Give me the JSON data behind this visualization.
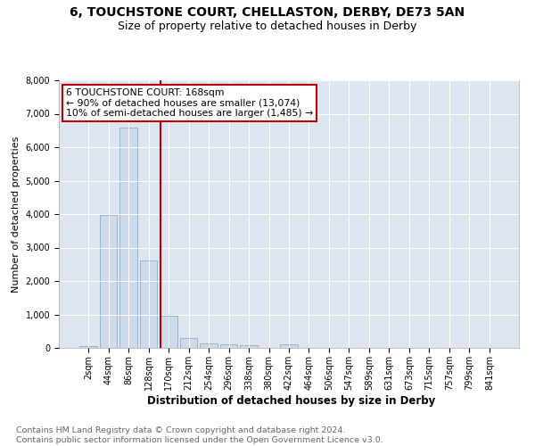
{
  "title": "6, TOUCHSTONE COURT, CHELLASTON, DERBY, DE73 5AN",
  "subtitle": "Size of property relative to detached houses in Derby",
  "xlabel": "Distribution of detached houses by size in Derby",
  "ylabel": "Number of detached properties",
  "footer_line1": "Contains HM Land Registry data © Crown copyright and database right 2024.",
  "footer_line2": "Contains public sector information licensed under the Open Government Licence v3.0.",
  "bar_labels": [
    "2sqm",
    "44sqm",
    "86sqm",
    "128sqm",
    "170sqm",
    "212sqm",
    "254sqm",
    "296sqm",
    "338sqm",
    "380sqm",
    "422sqm",
    "464sqm",
    "506sqm",
    "547sqm",
    "589sqm",
    "631sqm",
    "673sqm",
    "715sqm",
    "757sqm",
    "799sqm",
    "841sqm"
  ],
  "bar_values": [
    60,
    3980,
    6600,
    2620,
    960,
    305,
    140,
    100,
    85,
    0,
    100,
    0,
    0,
    0,
    0,
    0,
    0,
    0,
    0,
    0,
    0
  ],
  "bar_color": "#ccdaeb",
  "bar_edgecolor": "#8aafc8",
  "annotation_box_text": "6 TOUCHSTONE COURT: 168sqm\n← 90% of detached houses are smaller (13,074)\n10% of semi-detached houses are larger (1,485) →",
  "vline_color": "#bb0000",
  "vline_x_index": 3.58,
  "ylim": [
    0,
    8000
  ],
  "yticks": [
    0,
    1000,
    2000,
    3000,
    4000,
    5000,
    6000,
    7000,
    8000
  ],
  "bg_color": "#dde6f0",
  "title_fontsize": 10,
  "subtitle_fontsize": 9,
  "annotation_fontsize": 7.8,
  "xlabel_fontsize": 8.5,
  "ylabel_fontsize": 8,
  "tick_fontsize": 7,
  "footer_fontsize": 6.8
}
